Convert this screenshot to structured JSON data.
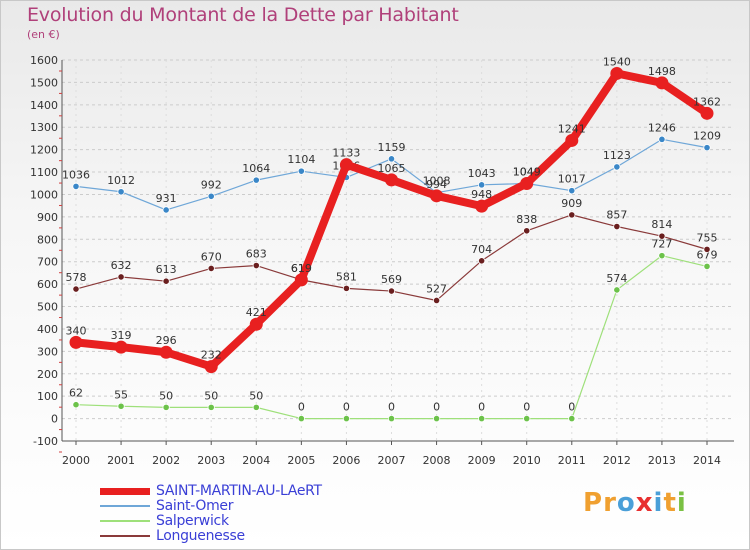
{
  "title": "Evolution du Montant de la Dette par Habitant",
  "subtitle": "(en €)",
  "colors": {
    "title": "#b0407a",
    "legend_text": "#3a3fd6",
    "grid": "#cccccc"
  },
  "logo": {
    "text": "Proxiti",
    "letter_colors": [
      "#f0a030",
      "#f0a030",
      "#4a9fd8",
      "#e83030",
      "#4a9fd8",
      "#f0a030",
      "#7ac143"
    ]
  },
  "chart_data": {
    "type": "line",
    "title": "Evolution du Montant de la Dette par Habitant",
    "subtitle": "(en €)",
    "x": [
      2000,
      2001,
      2002,
      2003,
      2004,
      2005,
      2006,
      2007,
      2008,
      2009,
      2010,
      2011,
      2012,
      2013,
      2014
    ],
    "ylim": [
      -100,
      1600
    ],
    "yticks": [
      -100,
      0,
      100,
      200,
      300,
      400,
      500,
      600,
      700,
      800,
      900,
      1000,
      1100,
      1200,
      1300,
      1400,
      1500,
      1600
    ],
    "grid": "horizontal dashed",
    "legend_position": "bottom-left",
    "series": [
      {
        "name": "Saint-Omer",
        "color": "#6fa7d8",
        "marker_color": "#3a87c8",
        "width": 1.2,
        "values": [
          1036,
          1012,
          931,
          992,
          1064,
          1104,
          1076,
          1159,
          1008,
          1043,
          1049,
          1017,
          1123,
          1246,
          1209
        ],
        "labels": [
          "1036",
          "1012",
          "931",
          "992",
          "1064",
          "1104",
          "1076",
          "1159",
          "1008",
          "1043",
          "1049",
          "1017",
          "1123",
          "1246",
          "1209"
        ]
      },
      {
        "name": "Salperwick",
        "color": "#9ee07a",
        "marker_color": "#6cc24a",
        "width": 1.2,
        "values": [
          62,
          55,
          50,
          50,
          50,
          0,
          0,
          0,
          0,
          0,
          0,
          0,
          574,
          727,
          679
        ],
        "labels": [
          "62",
          "55",
          "50",
          "50",
          "50",
          "0",
          "0",
          "0",
          "0",
          "0",
          "0",
          "0",
          "574",
          "727",
          "679"
        ]
      },
      {
        "name": "Longuenesse",
        "color": "#8a3a3a",
        "marker_color": "#6a1f1f",
        "width": 1.2,
        "values": [
          578,
          632,
          613,
          670,
          683,
          619,
          581,
          569,
          527,
          704,
          838,
          909,
          857,
          814,
          755
        ],
        "labels": [
          "578",
          "632",
          "613",
          "670",
          "683",
          "619",
          "581",
          "569",
          "527",
          "704",
          "838",
          "909",
          "857",
          "814",
          "755"
        ]
      },
      {
        "name": "SAINT-MARTIN-AU-LAeRT",
        "color": "#e82020",
        "marker_color": "#e82020",
        "width": 8,
        "values": [
          340,
          319,
          296,
          232,
          421,
          619,
          1133,
          1065,
          994,
          948,
          1049,
          1241,
          1540,
          1498,
          1362
        ],
        "labels": [
          "340",
          "319",
          "296",
          "232",
          "421",
          "619",
          "1133",
          "1065",
          "994",
          "948",
          "1049",
          "1241",
          "1540",
          "1498",
          "1362"
        ]
      }
    ],
    "legend_order": [
      "SAINT-MARTIN-AU-LAeRT",
      "Saint-Omer",
      "Salperwick",
      "Longuenesse"
    ]
  }
}
